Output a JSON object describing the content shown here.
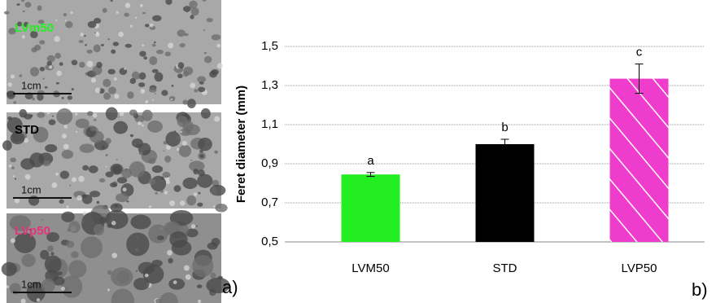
{
  "photos": [
    {
      "label": "LVm50",
      "label_color": "#22ee22",
      "scale": "1cm"
    },
    {
      "label": "STD",
      "label_color": "#000000",
      "scale": "1cm"
    },
    {
      "label": "LVp50",
      "label_color": "#e8317a",
      "scale": "1cm"
    }
  ],
  "panel_labels": [
    "a)",
    "b)"
  ],
  "chart_data": {
    "type": "bar",
    "y_label": "Feret diameter (mm)",
    "categories": [
      "LVM50",
      "STD",
      "LVP50"
    ],
    "values": [
      0.845,
      1.0,
      1.335
    ],
    "errors": [
      0.01,
      0.025,
      0.075
    ],
    "annotations": [
      "a",
      "b",
      "c"
    ],
    "colors": [
      "#22ee22",
      "#000000",
      "#ee3ccc"
    ],
    "hatched": [
      false,
      false,
      true
    ],
    "ylim": [
      0.5,
      1.5
    ],
    "yticks": [
      {
        "value": 0.5,
        "label": "0,5"
      },
      {
        "value": 0.7,
        "label": "0,7"
      },
      {
        "value": 0.9,
        "label": "0,9"
      },
      {
        "value": 1.1,
        "label": "1,1"
      },
      {
        "value": 1.3,
        "label": "1,3"
      },
      {
        "value": 1.5,
        "label": "1,5"
      }
    ],
    "grid": true
  }
}
